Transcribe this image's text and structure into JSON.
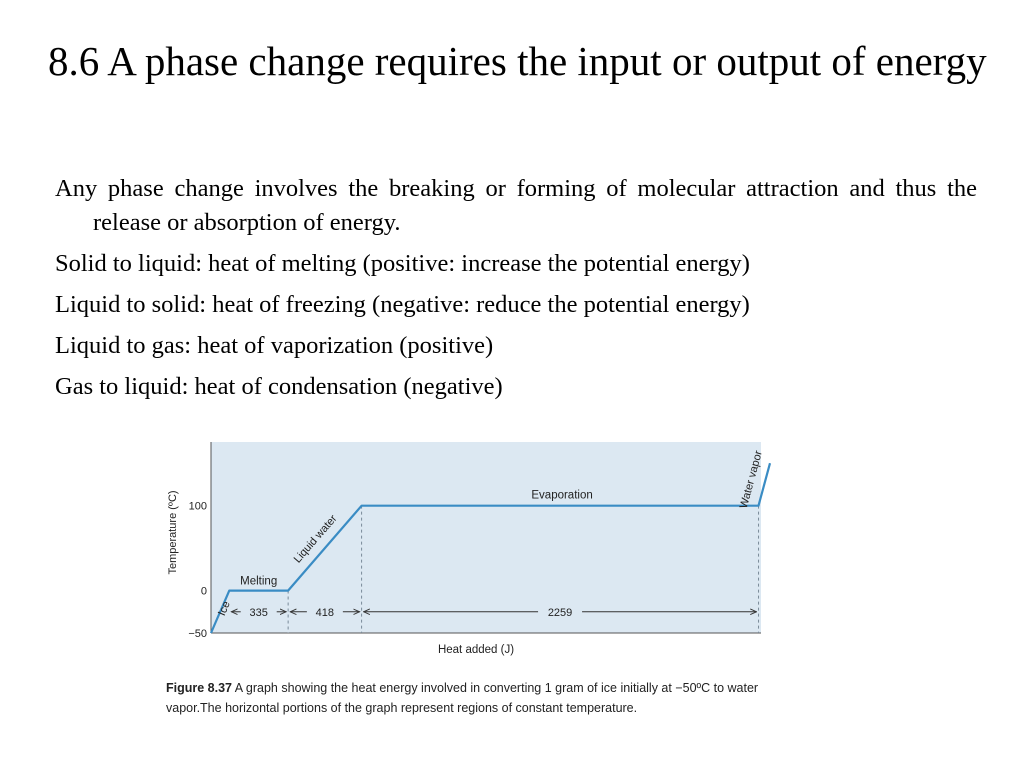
{
  "slide": {
    "title": "8.6 A phase change requires the input or output of energy",
    "bullets": [
      "Any phase change involves the breaking or forming of molecular attraction and thus the release or absorption of energy.",
      "Solid to liquid: heat of melting (positive: increase the potential energy)",
      "Liquid to solid: heat of freezing (negative: reduce the potential energy)",
      "Liquid to gas: heat of vaporization (positive)",
      "Gas to liquid: heat of condensation (negative)"
    ]
  },
  "figure": {
    "label": "Figure 8.37",
    "caption": "A graph showing the heat energy involved in converting 1 gram of ice initially at −50ºC to water vapor.The horizontal portions of the graph represent regions of constant temperature."
  },
  "colors": {
    "plot_bg": "#dce8f2",
    "line": "#3a8cc4",
    "dash": "#7a8a99",
    "text": "#222222"
  },
  "chart_data": {
    "type": "line",
    "xlabel": "Heat added (J)",
    "ylabel": "Temperature (ºC)",
    "yticks": [
      "100",
      "0",
      "−50"
    ],
    "ytick_values": [
      100,
      0,
      -50
    ],
    "ylim": [
      -50,
      175
    ],
    "xlim": [
      0,
      3130
    ],
    "series": [
      {
        "name": "Heating curve of water",
        "x": [
          0,
          104,
          439,
          857,
          3116,
          3181
        ],
        "y": [
          -50,
          0,
          0,
          100,
          100,
          150
        ]
      }
    ],
    "segment_labels": [
      "Ice",
      "Melting",
      "Liquid water",
      "Evaporation",
      "Water vapor"
    ],
    "intervals": [
      {
        "label": "335",
        "from": 104,
        "to": 439
      },
      {
        "label": "418",
        "from": 439,
        "to": 857
      },
      {
        "label": "2259",
        "from": 857,
        "to": 3116
      }
    ]
  }
}
